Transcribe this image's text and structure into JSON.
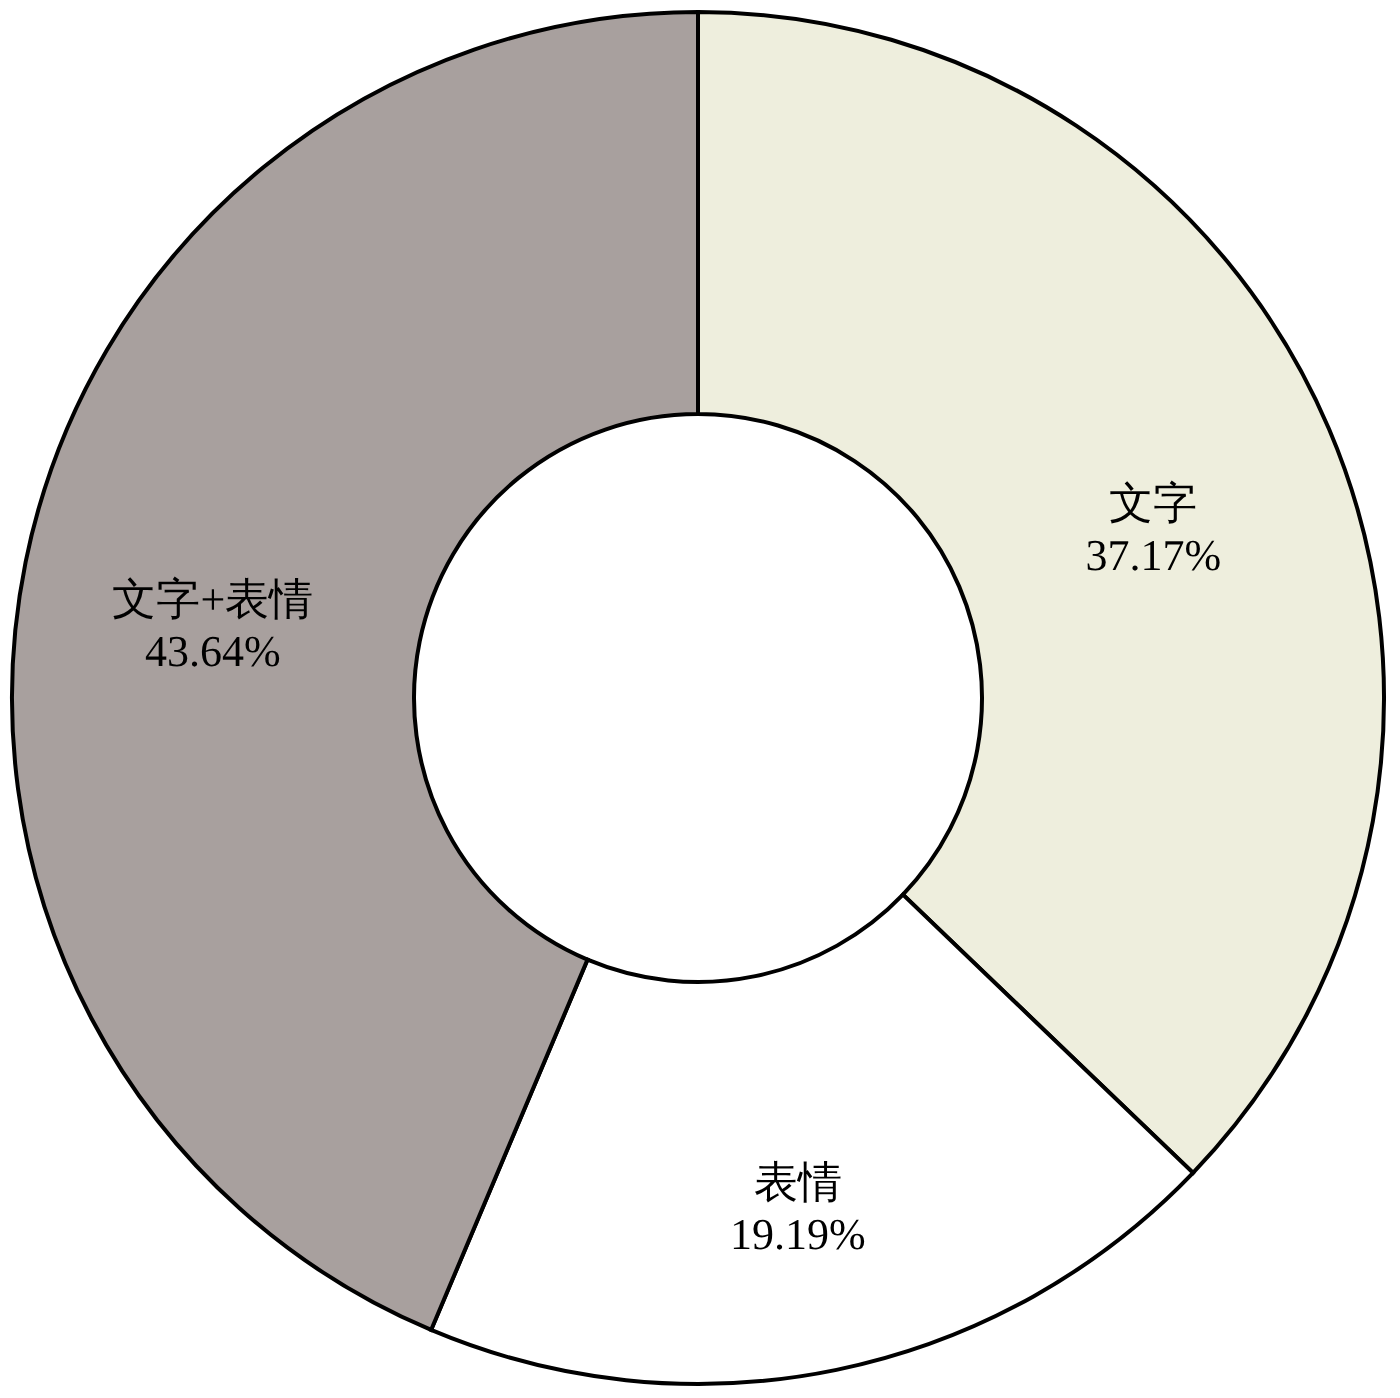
{
  "chart_data": {
    "type": "donut",
    "categories": [
      "文字",
      "表情",
      "文字+表情"
    ],
    "values": [
      37.17,
      19.19,
      43.64
    ],
    "colors": [
      "#eeeedd",
      "#ffffff",
      "#a8a09e"
    ],
    "value_labels": [
      "37.17%",
      "19.19%",
      "43.64%"
    ]
  }
}
